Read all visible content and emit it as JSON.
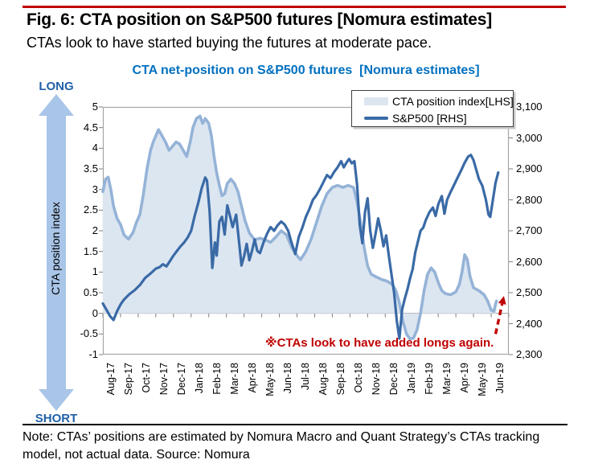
{
  "header": {
    "fig_label": "Fig. 6: CTA position on S&P500 futures [Nomura estimates]",
    "subtitle": "CTAs look to have started buying the futures at moderate pace."
  },
  "chart": {
    "title": "CTA net-position on S&P500 futures  [Nomura estimates]",
    "axis_arrow": {
      "top_label": "LONG",
      "bottom_label": "SHORT",
      "axis_title": "CTA position index"
    },
    "legend": [
      {
        "label": "CTA position index[LHS]",
        "type": "area"
      },
      {
        "label": "S&P500 [RHS]",
        "type": "line"
      }
    ],
    "annotation": "※CTAs look to have added longs again."
  },
  "footer": {
    "note_line1": "Note: CTAs’ positions are estimated by Nomura Macro and Quant Strategy’s CTAs tracking",
    "note_line2": "model, not actual data. Source: Nomura"
  },
  "colors": {
    "rule_red": "#C00000",
    "annotation_red": "#C00000",
    "chart_title_blue": "#0070C0",
    "long_short_blue": "#2060A8",
    "arrow_fill": "#A9C5E8",
    "area_fill": "#DCE6F1",
    "area_line": "#95B3D7",
    "spx_line": "#3A6AA6",
    "axis_border": "#A6A6A6",
    "tick_color": "#7F7F7F",
    "zero_line": "#9B9B9B"
  },
  "chart_data": {
    "type": "area+line",
    "title": "CTA net-position on S&P500 futures  [Nomura estimates]",
    "categories": [
      "Aug-17",
      "Sep-17",
      "Oct-17",
      "Nov-17",
      "Dec-17",
      "Jan-18",
      "Feb-18",
      "Mar-18",
      "Apr-18",
      "May-18",
      "Jun-18",
      "Jul-18",
      "Aug-18",
      "Sep-18",
      "Oct-18",
      "Nov-18",
      "Dec-18",
      "Jan-19",
      "Feb-19",
      "Mar-19",
      "Apr-19",
      "May-19",
      "Jun-19"
    ],
    "lhs_range": [
      -1,
      5
    ],
    "rhs_range": [
      2300,
      3100
    ],
    "lhs_ticks": [
      "5",
      "4.5",
      "4",
      "3.5",
      "3",
      "2.5",
      "2",
      "1.5",
      "1",
      "0.5",
      "0",
      "-0.5",
      "-1"
    ],
    "rhs_ticks": [
      "3,100",
      "3,000",
      "2,900",
      "2,800",
      "2,700",
      "2,600",
      "2,500",
      "2,400",
      "2,300"
    ],
    "grid": "zero-line-only",
    "legend_position": "top-right-inside",
    "series": [
      {
        "name": "CTA position index[LHS]",
        "axis": "left",
        "type": "area",
        "data": [
          [
            0,
            2.95
          ],
          [
            0.15,
            3.25
          ],
          [
            0.3,
            3.3
          ],
          [
            0.45,
            3.0
          ],
          [
            0.6,
            2.6
          ],
          [
            0.8,
            2.3
          ],
          [
            1.0,
            2.15
          ],
          [
            1.2,
            1.9
          ],
          [
            1.45,
            1.8
          ],
          [
            1.7,
            1.95
          ],
          [
            1.9,
            2.2
          ],
          [
            2.1,
            2.4
          ],
          [
            2.3,
            2.9
          ],
          [
            2.5,
            3.5
          ],
          [
            2.7,
            3.95
          ],
          [
            2.85,
            4.15
          ],
          [
            3.0,
            4.3
          ],
          [
            3.15,
            4.45
          ],
          [
            3.35,
            4.3
          ],
          [
            3.55,
            4.15
          ],
          [
            3.75,
            3.95
          ],
          [
            3.95,
            4.05
          ],
          [
            4.15,
            4.15
          ],
          [
            4.35,
            4.1
          ],
          [
            4.55,
            3.95
          ],
          [
            4.75,
            3.8
          ],
          [
            4.95,
            4.15
          ],
          [
            5.1,
            4.5
          ],
          [
            5.3,
            4.72
          ],
          [
            5.5,
            4.78
          ],
          [
            5.65,
            4.6
          ],
          [
            5.8,
            4.72
          ],
          [
            6.0,
            4.6
          ],
          [
            6.15,
            4.3
          ],
          [
            6.3,
            3.8
          ],
          [
            6.45,
            3.4
          ],
          [
            6.6,
            3.1
          ],
          [
            6.75,
            2.85
          ],
          [
            6.9,
            2.9
          ],
          [
            7.05,
            3.15
          ],
          [
            7.25,
            3.25
          ],
          [
            7.45,
            3.15
          ],
          [
            7.65,
            2.95
          ],
          [
            7.85,
            2.6
          ],
          [
            8.05,
            2.25
          ],
          [
            8.3,
            1.95
          ],
          [
            8.6,
            1.78
          ],
          [
            8.9,
            1.82
          ],
          [
            9.2,
            1.78
          ],
          [
            9.5,
            1.72
          ],
          [
            9.8,
            1.85
          ],
          [
            10.1,
            2.0
          ],
          [
            10.4,
            1.9
          ],
          [
            10.7,
            1.6
          ],
          [
            11.0,
            1.4
          ],
          [
            11.2,
            1.3
          ],
          [
            11.5,
            1.5
          ],
          [
            11.8,
            1.8
          ],
          [
            12.1,
            2.2
          ],
          [
            12.4,
            2.6
          ],
          [
            12.7,
            2.9
          ],
          [
            13.0,
            3.05
          ],
          [
            13.3,
            3.1
          ],
          [
            13.6,
            3.05
          ],
          [
            13.9,
            3.1
          ],
          [
            14.2,
            3.05
          ],
          [
            14.4,
            2.7
          ],
          [
            14.6,
            2.2
          ],
          [
            14.8,
            1.6
          ],
          [
            15.0,
            1.15
          ],
          [
            15.2,
            0.95
          ],
          [
            15.5,
            0.88
          ],
          [
            15.8,
            0.82
          ],
          [
            16.1,
            0.78
          ],
          [
            16.4,
            0.7
          ],
          [
            16.6,
            0.55
          ],
          [
            16.8,
            0.25
          ],
          [
            17.0,
            -0.2
          ],
          [
            17.2,
            -0.5
          ],
          [
            17.4,
            -0.62
          ],
          [
            17.6,
            -0.6
          ],
          [
            17.8,
            -0.4
          ],
          [
            18.0,
            0.0
          ],
          [
            18.2,
            0.55
          ],
          [
            18.4,
            0.95
          ],
          [
            18.6,
            1.1
          ],
          [
            18.8,
            1.0
          ],
          [
            19.0,
            0.75
          ],
          [
            19.2,
            0.55
          ],
          [
            19.4,
            0.48
          ],
          [
            19.7,
            0.45
          ],
          [
            20.0,
            0.52
          ],
          [
            20.2,
            0.7
          ],
          [
            20.35,
            1.0
          ],
          [
            20.5,
            1.42
          ],
          [
            20.65,
            1.3
          ],
          [
            20.8,
            0.9
          ],
          [
            21.0,
            0.62
          ],
          [
            21.3,
            0.55
          ],
          [
            21.6,
            0.45
          ],
          [
            21.8,
            0.3
          ],
          [
            22.0,
            0.08
          ],
          [
            22.15,
            0.05
          ],
          [
            22.3,
            0.3
          ]
        ]
      },
      {
        "name": "S&P500 [RHS]",
        "axis": "right",
        "type": "line",
        "data": [
          [
            0,
            2465
          ],
          [
            0.2,
            2445
          ],
          [
            0.4,
            2425
          ],
          [
            0.6,
            2412
          ],
          [
            0.8,
            2440
          ],
          [
            1.0,
            2462
          ],
          [
            1.2,
            2478
          ],
          [
            1.5,
            2495
          ],
          [
            1.8,
            2508
          ],
          [
            2.1,
            2525
          ],
          [
            2.4,
            2548
          ],
          [
            2.7,
            2562
          ],
          [
            3.0,
            2578
          ],
          [
            3.2,
            2582
          ],
          [
            3.4,
            2592
          ],
          [
            3.6,
            2585
          ],
          [
            3.8,
            2602
          ],
          [
            4.0,
            2620
          ],
          [
            4.2,
            2635
          ],
          [
            4.4,
            2650
          ],
          [
            4.6,
            2662
          ],
          [
            4.8,
            2678
          ],
          [
            5.0,
            2700
          ],
          [
            5.2,
            2748
          ],
          [
            5.4,
            2790
          ],
          [
            5.6,
            2838
          ],
          [
            5.8,
            2872
          ],
          [
            5.9,
            2862
          ],
          [
            6.05,
            2762
          ],
          [
            6.2,
            2580
          ],
          [
            6.35,
            2662
          ],
          [
            6.45,
            2620
          ],
          [
            6.6,
            2730
          ],
          [
            6.75,
            2745
          ],
          [
            6.9,
            2688
          ],
          [
            7.05,
            2782
          ],
          [
            7.2,
            2748
          ],
          [
            7.35,
            2712
          ],
          [
            7.55,
            2752
          ],
          [
            7.7,
            2672
          ],
          [
            7.85,
            2588
          ],
          [
            8.0,
            2618
          ],
          [
            8.15,
            2658
          ],
          [
            8.3,
            2605
          ],
          [
            8.45,
            2635
          ],
          [
            8.6,
            2672
          ],
          [
            8.75,
            2635
          ],
          [
            8.9,
            2628
          ],
          [
            9.1,
            2662
          ],
          [
            9.3,
            2690
          ],
          [
            9.5,
            2712
          ],
          [
            9.7,
            2700
          ],
          [
            9.9,
            2718
          ],
          [
            10.1,
            2730
          ],
          [
            10.3,
            2720
          ],
          [
            10.5,
            2700
          ],
          [
            10.7,
            2660
          ],
          [
            10.9,
            2625
          ],
          [
            11.1,
            2680
          ],
          [
            11.3,
            2710
          ],
          [
            11.5,
            2745
          ],
          [
            11.7,
            2770
          ],
          [
            11.9,
            2800
          ],
          [
            12.1,
            2815
          ],
          [
            12.3,
            2835
          ],
          [
            12.5,
            2858
          ],
          [
            12.7,
            2880
          ],
          [
            12.9,
            2870
          ],
          [
            13.1,
            2890
          ],
          [
            13.3,
            2905
          ],
          [
            13.5,
            2925
          ],
          [
            13.65,
            2905
          ],
          [
            13.8,
            2920
          ],
          [
            13.95,
            2932
          ],
          [
            14.1,
            2918
          ],
          [
            14.25,
            2925
          ],
          [
            14.4,
            2850
          ],
          [
            14.55,
            2720
          ],
          [
            14.7,
            2660
          ],
          [
            14.85,
            2760
          ],
          [
            15.0,
            2805
          ],
          [
            15.15,
            2700
          ],
          [
            15.3,
            2645
          ],
          [
            15.45,
            2690
          ],
          [
            15.6,
            2740
          ],
          [
            15.75,
            2700
          ],
          [
            15.9,
            2650
          ],
          [
            16.05,
            2685
          ],
          [
            16.2,
            2620
          ],
          [
            16.35,
            2560
          ],
          [
            16.5,
            2500
          ],
          [
            16.65,
            2410
          ],
          [
            16.8,
            2352
          ],
          [
            16.95,
            2445
          ],
          [
            17.1,
            2480
          ],
          [
            17.25,
            2510
          ],
          [
            17.4,
            2545
          ],
          [
            17.55,
            2575
          ],
          [
            17.7,
            2630
          ],
          [
            17.85,
            2665
          ],
          [
            18.0,
            2700
          ],
          [
            18.15,
            2710
          ],
          [
            18.3,
            2735
          ],
          [
            18.5,
            2760
          ],
          [
            18.7,
            2775
          ],
          [
            18.85,
            2748
          ],
          [
            19.0,
            2785
          ],
          [
            19.2,
            2812
          ],
          [
            19.35,
            2755
          ],
          [
            19.5,
            2800
          ],
          [
            19.7,
            2825
          ],
          [
            19.9,
            2848
          ],
          [
            20.1,
            2872
          ],
          [
            20.3,
            2895
          ],
          [
            20.5,
            2920
          ],
          [
            20.7,
            2940
          ],
          [
            20.85,
            2945
          ],
          [
            21.0,
            2928
          ],
          [
            21.15,
            2898
          ],
          [
            21.3,
            2868
          ],
          [
            21.5,
            2845
          ],
          [
            21.7,
            2800
          ],
          [
            21.85,
            2752
          ],
          [
            21.95,
            2745
          ],
          [
            22.1,
            2800
          ],
          [
            22.25,
            2855
          ],
          [
            22.4,
            2888
          ]
        ]
      }
    ],
    "annotation_arrow": {
      "from": [
        22.25,
        -0.5
      ],
      "to": [
        22.72,
        0.42
      ],
      "style": "dashed-red"
    }
  }
}
